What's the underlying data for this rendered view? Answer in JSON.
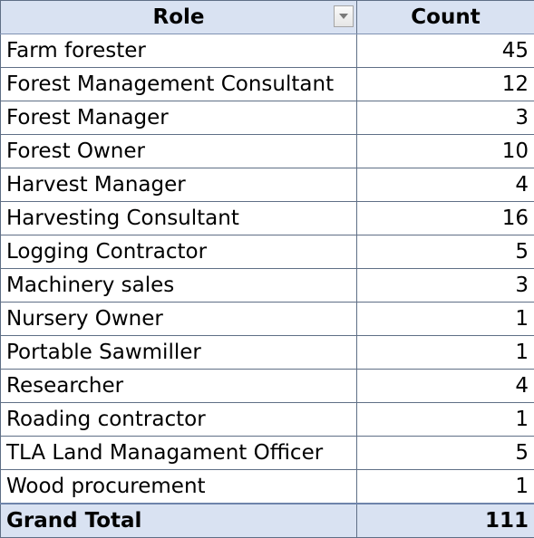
{
  "table": {
    "header": {
      "role_label": "Role",
      "count_label": "Count",
      "filter_icon": "dropdown-arrow-icon"
    },
    "rows": [
      {
        "role": "Farm forester",
        "count": "45"
      },
      {
        "role": "Forest Management Consultant",
        "count": "12"
      },
      {
        "role": "Forest Manager",
        "count": "3"
      },
      {
        "role": "Forest Owner",
        "count": "10"
      },
      {
        "role": "Harvest Manager",
        "count": "4"
      },
      {
        "role": "Harvesting Consultant",
        "count": "16"
      },
      {
        "role": "Logging Contractor",
        "count": "5"
      },
      {
        "role": "Machinery sales",
        "count": "3"
      },
      {
        "role": "Nursery Owner",
        "count": "1"
      },
      {
        "role": "Portable Sawmiller",
        "count": "1"
      },
      {
        "role": "Researcher",
        "count": "4"
      },
      {
        "role": "Roading contractor",
        "count": "1"
      },
      {
        "role": "TLA Land Managament Officer",
        "count": "5"
      },
      {
        "role": "Wood procurement",
        "count": "1"
      }
    ],
    "total": {
      "label": "Grand Total",
      "count": "111"
    }
  },
  "colors": {
    "header_fill": "#d9e2f2",
    "grid_line": "#5f6f86",
    "total_border": "#6e84ab"
  }
}
